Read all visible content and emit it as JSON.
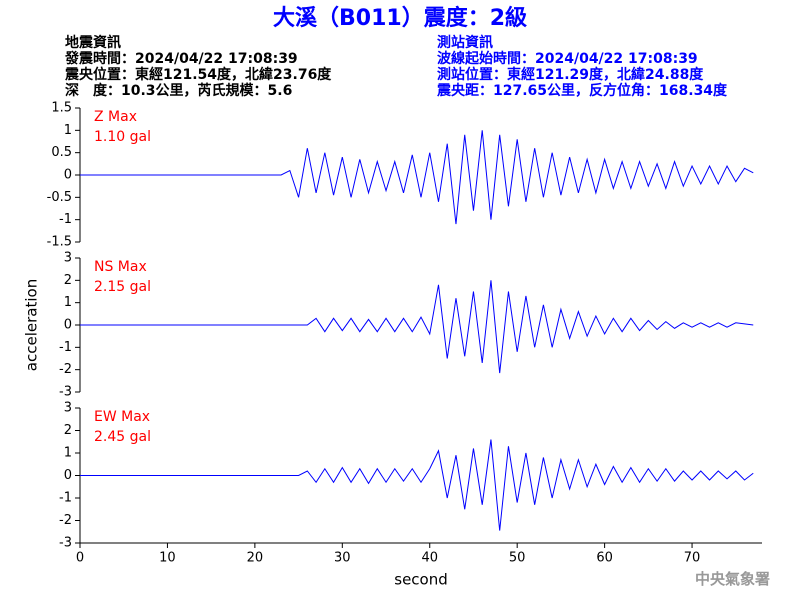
{
  "header": {
    "title": "大溪（B011）震度：2級",
    "left": [
      "地震資訊",
      "發震時間：2024/04/22 17:08:39",
      "震央位置：東經121.54度，北緯23.76度",
      "深　度：10.3公里，芮氏規模：5.6"
    ],
    "right": [
      "測站資訊",
      "波線起始時間：2024/04/22 17:08:39",
      "測站位置：東經121.29度，北緯24.88度",
      "震央距：127.65公里，反方位角：168.34度"
    ]
  },
  "footer": "中央氣象署",
  "chart_data": [
    {
      "type": "line",
      "name": "Z Max",
      "max_label": "1.10 gal",
      "label_color": "#ff0000",
      "color": "#0000ff",
      "xlim": [
        0,
        78
      ],
      "ylim": [
        -1.5,
        1.5
      ],
      "yticks": [
        1.5,
        1,
        0.5,
        0,
        -0.5,
        -1,
        -1.5
      ],
      "x": [
        0,
        1,
        2,
        3,
        4,
        5,
        6,
        7,
        8,
        9,
        10,
        11,
        12,
        13,
        14,
        15,
        16,
        17,
        18,
        19,
        20,
        21,
        22,
        23,
        24,
        25,
        26,
        27,
        28,
        29,
        30,
        31,
        32,
        33,
        34,
        35,
        36,
        37,
        38,
        39,
        40,
        41,
        42,
        43,
        44,
        45,
        46,
        47,
        48,
        49,
        50,
        51,
        52,
        53,
        54,
        55,
        56,
        57,
        58,
        59,
        60,
        61,
        62,
        63,
        64,
        65,
        66,
        67,
        68,
        69,
        70,
        71,
        72,
        73,
        74,
        75,
        76,
        77
      ],
      "values": [
        0,
        0,
        0,
        0,
        0,
        0,
        0,
        0,
        0,
        0,
        0,
        0,
        0,
        0,
        0,
        0,
        0,
        0,
        0,
        0,
        0,
        0,
        0,
        0,
        0.1,
        -0.5,
        0.6,
        -0.4,
        0.5,
        -0.45,
        0.4,
        -0.5,
        0.35,
        -0.4,
        0.3,
        -0.35,
        0.3,
        -0.4,
        0.45,
        -0.5,
        0.5,
        -0.6,
        0.7,
        -1.1,
        0.9,
        -0.8,
        1.0,
        -1.0,
        0.9,
        -0.7,
        0.8,
        -0.6,
        0.6,
        -0.5,
        0.5,
        -0.45,
        0.4,
        -0.4,
        0.35,
        -0.4,
        0.35,
        -0.3,
        0.3,
        -0.3,
        0.3,
        -0.25,
        0.25,
        -0.3,
        0.3,
        -0.25,
        0.2,
        -0.2,
        0.2,
        -0.2,
        0.2,
        -0.15,
        0.15,
        0.05
      ]
    },
    {
      "type": "line",
      "name": "NS Max",
      "max_label": "2.15 gal",
      "label_color": "#ff0000",
      "color": "#0000ff",
      "ylabel": "acceleration",
      "xlim": [
        0,
        78
      ],
      "ylim": [
        -3,
        3
      ],
      "yticks": [
        3,
        2,
        1,
        0,
        -1,
        -2,
        -3
      ],
      "x": [
        0,
        1,
        2,
        3,
        4,
        5,
        6,
        7,
        8,
        9,
        10,
        11,
        12,
        13,
        14,
        15,
        16,
        17,
        18,
        19,
        20,
        21,
        22,
        23,
        24,
        25,
        26,
        27,
        28,
        29,
        30,
        31,
        32,
        33,
        34,
        35,
        36,
        37,
        38,
        39,
        40,
        41,
        42,
        43,
        44,
        45,
        46,
        47,
        48,
        49,
        50,
        51,
        52,
        53,
        54,
        55,
        56,
        57,
        58,
        59,
        60,
        61,
        62,
        63,
        64,
        65,
        66,
        67,
        68,
        69,
        70,
        71,
        72,
        73,
        74,
        75,
        76,
        77
      ],
      "values": [
        0,
        0,
        0,
        0,
        0,
        0,
        0,
        0,
        0,
        0,
        0,
        0,
        0,
        0,
        0,
        0,
        0,
        0,
        0,
        0,
        0,
        0,
        0,
        0,
        0,
        0,
        0,
        0.3,
        -0.3,
        0.3,
        -0.25,
        0.3,
        -0.3,
        0.25,
        -0.3,
        0.3,
        -0.3,
        0.3,
        -0.3,
        0.35,
        -0.4,
        1.8,
        -1.5,
        1.2,
        -1.4,
        1.5,
        -1.7,
        2.0,
        -2.15,
        1.5,
        -1.2,
        1.3,
        -1.0,
        0.9,
        -1.0,
        0.7,
        -0.6,
        0.6,
        -0.5,
        0.4,
        -0.4,
        0.3,
        -0.3,
        0.3,
        -0.25,
        0.2,
        -0.2,
        0.15,
        -0.15,
        0.1,
        -0.1,
        0.1,
        -0.1,
        0.1,
        -0.1,
        0.1,
        0.05,
        0
      ]
    },
    {
      "type": "line",
      "name": "EW Max",
      "max_label": "2.45 gal",
      "label_color": "#ff0000",
      "color": "#0000ff",
      "xlabel": "second",
      "xlim": [
        0,
        78
      ],
      "ylim": [
        -3,
        3
      ],
      "yticks": [
        3,
        2,
        1,
        0,
        -1,
        -2,
        -3
      ],
      "xticks": [
        0,
        10,
        20,
        30,
        40,
        50,
        60,
        70
      ],
      "x": [
        0,
        1,
        2,
        3,
        4,
        5,
        6,
        7,
        8,
        9,
        10,
        11,
        12,
        13,
        14,
        15,
        16,
        17,
        18,
        19,
        20,
        21,
        22,
        23,
        24,
        25,
        26,
        27,
        28,
        29,
        30,
        31,
        32,
        33,
        34,
        35,
        36,
        37,
        38,
        39,
        40,
        41,
        42,
        43,
        44,
        45,
        46,
        47,
        48,
        49,
        50,
        51,
        52,
        53,
        54,
        55,
        56,
        57,
        58,
        59,
        60,
        61,
        62,
        63,
        64,
        65,
        66,
        67,
        68,
        69,
        70,
        71,
        72,
        73,
        74,
        75,
        76,
        77
      ],
      "values": [
        0,
        0,
        0,
        0,
        0,
        0,
        0,
        0,
        0,
        0,
        0,
        0,
        0,
        0,
        0,
        0,
        0,
        0,
        0,
        0,
        0,
        0,
        0,
        0,
        0,
        0,
        0.2,
        -0.3,
        0.3,
        -0.3,
        0.35,
        -0.3,
        0.3,
        -0.35,
        0.3,
        -0.3,
        0.3,
        -0.25,
        0.3,
        -0.3,
        0.3,
        1.1,
        -1.0,
        0.9,
        -1.5,
        1.2,
        -1.3,
        1.6,
        -2.45,
        1.3,
        -1.2,
        1.0,
        -1.3,
        0.8,
        -1.0,
        0.7,
        -0.6,
        0.7,
        -0.5,
        0.5,
        -0.4,
        0.4,
        -0.3,
        0.35,
        -0.3,
        0.3,
        -0.25,
        0.3,
        -0.25,
        0.2,
        -0.2,
        0.2,
        -0.2,
        0.2,
        -0.15,
        0.2,
        -0.2,
        0.1
      ]
    }
  ]
}
